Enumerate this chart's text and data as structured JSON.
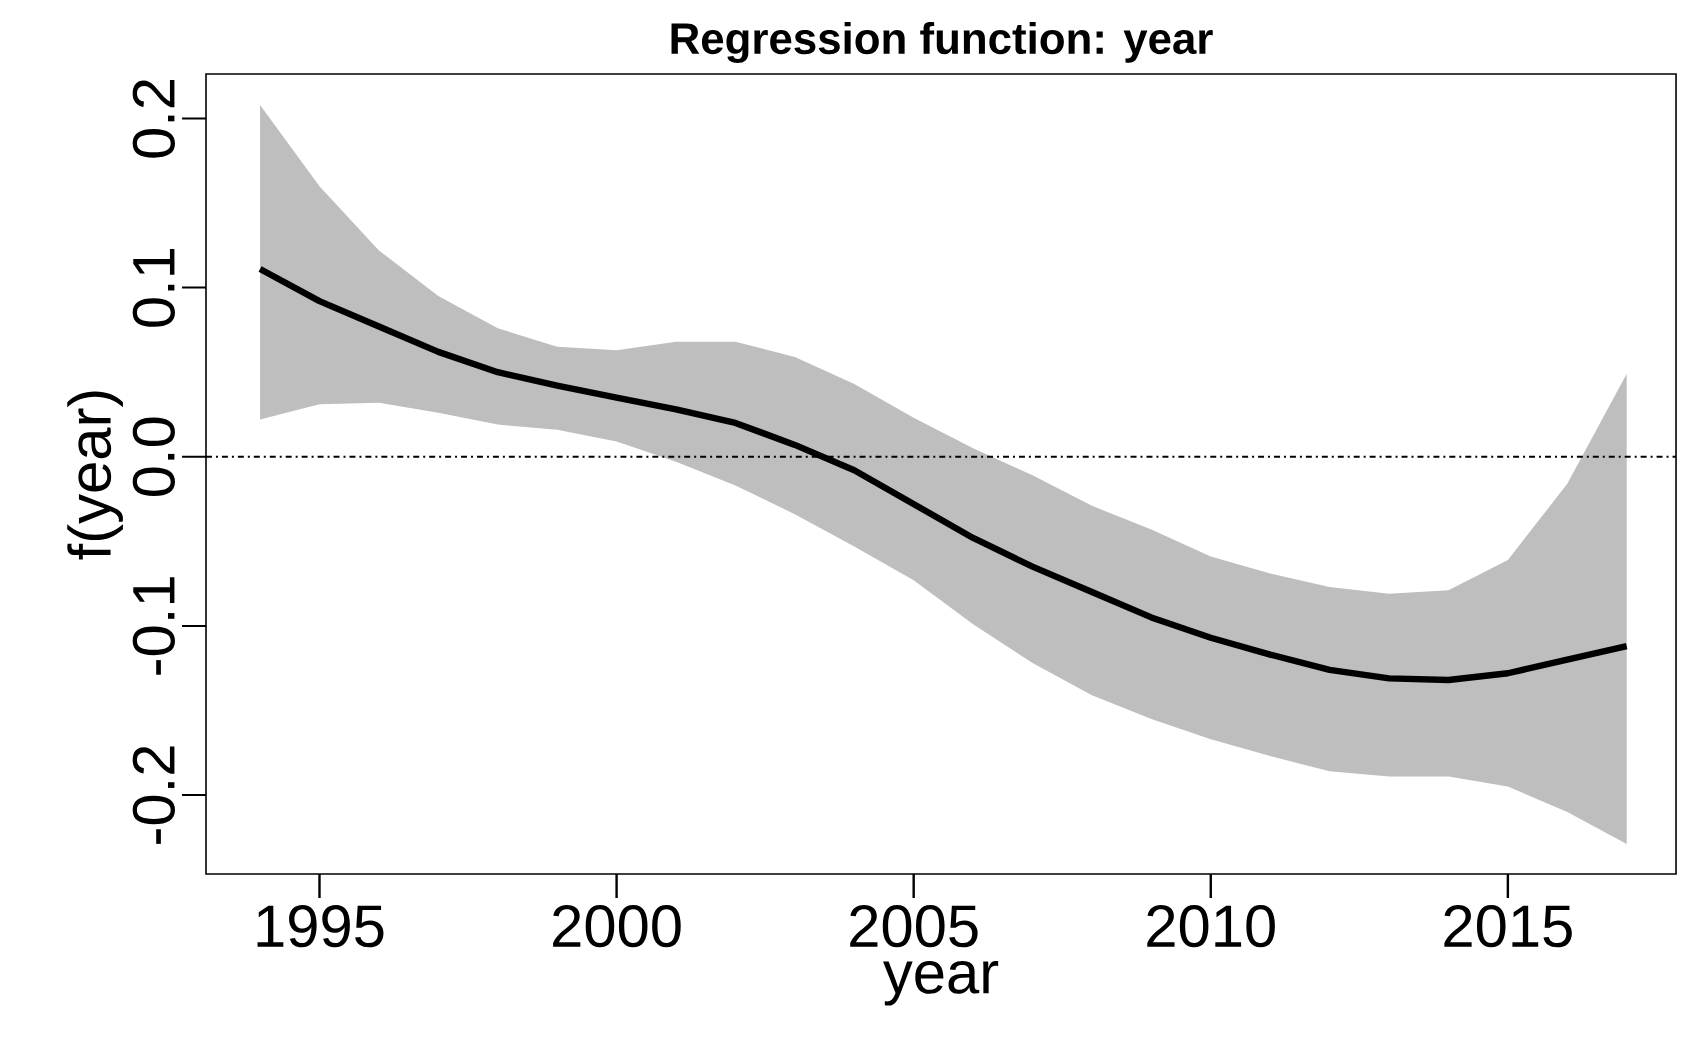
{
  "chart_data": {
    "type": "line",
    "title": "Regression function: year",
    "xlabel": "year",
    "ylabel": "f(year)",
    "x": [
      1994,
      1995,
      1996,
      1997,
      1998,
      1999,
      2000,
      2001,
      2002,
      2003,
      2004,
      2005,
      2006,
      2007,
      2008,
      2009,
      2010,
      2011,
      2012,
      2013,
      2014,
      2015,
      2016,
      2017
    ],
    "series": [
      {
        "color": "#000000",
        "values": [
          0.111,
          0.092,
          0.077,
          0.062,
          0.05,
          0.042,
          0.035,
          0.028,
          0.02,
          0.007,
          -0.008,
          -0.028,
          -0.048,
          -0.065,
          -0.08,
          -0.095,
          -0.107,
          -0.117,
          -0.126,
          -0.131,
          -0.132,
          -0.128,
          -0.12,
          -0.112
        ],
        "upper": [
          0.208,
          0.16,
          0.122,
          0.095,
          0.076,
          0.065,
          0.063,
          0.068,
          0.068,
          0.059,
          0.043,
          0.023,
          0.005,
          -0.011,
          -0.029,
          -0.043,
          -0.059,
          -0.069,
          -0.077,
          -0.081,
          -0.079,
          -0.061,
          -0.016,
          0.049
        ],
        "lower": [
          0.022,
          0.031,
          0.032,
          0.026,
          0.019,
          0.016,
          0.009,
          -0.003,
          -0.017,
          -0.034,
          -0.053,
          -0.073,
          -0.099,
          -0.122,
          -0.141,
          -0.155,
          -0.167,
          -0.177,
          -0.186,
          -0.189,
          -0.189,
          -0.195,
          -0.21,
          -0.229
        ]
      }
    ],
    "xlim": [
      1993.09,
      2017.83
    ],
    "ylim": [
      -0.2467,
      0.2263
    ],
    "xticks": [
      1995,
      2000,
      2005,
      2010,
      2015
    ],
    "yticks": [
      {
        "value": -0.2,
        "label": "-0.2"
      },
      {
        "value": -0.1,
        "label": "-0.1"
      },
      {
        "value": 0,
        "label": "0.0"
      },
      {
        "value": 0.1,
        "label": "0.1"
      },
      {
        "value": 0.2,
        "label": "0.2"
      }
    ],
    "ref_lines": [
      {
        "axis": "y",
        "value": 0,
        "line_style": "dashdot"
      }
    ],
    "grid": false,
    "marker": "none",
    "line_style": "solid"
  }
}
